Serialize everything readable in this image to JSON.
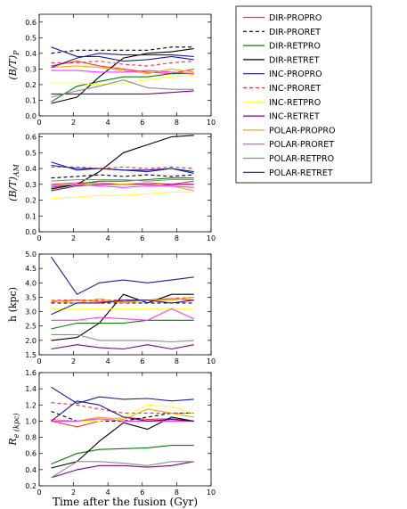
{
  "chart_data": [
    {
      "type": "line",
      "ylabel": "(B/T)_P",
      "xlim": [
        0,
        10
      ],
      "ylim": [
        0,
        0.65
      ],
      "xticks": [
        "0",
        "2",
        "4",
        "6",
        "8",
        "10"
      ],
      "yticks": [
        "0.0",
        "0.1",
        "0.2",
        "0.3",
        "0.4",
        "0.5",
        "0.6"
      ],
      "x": [
        0.7,
        2.2,
        3.5,
        4.9,
        6.3,
        7.7,
        9.0
      ],
      "series": [
        {
          "name": "DIR-PROPRO",
          "values": [
            0.32,
            0.35,
            0.32,
            0.3,
            0.28,
            0.27,
            0.3
          ]
        },
        {
          "name": "DIR-PRORET",
          "values": [
            0.4,
            0.42,
            0.42,
            0.42,
            0.42,
            0.44,
            0.44
          ]
        },
        {
          "name": "DIR-RETPRO",
          "values": [
            0.09,
            0.19,
            0.22,
            0.25,
            0.25,
            0.27,
            0.27
          ]
        },
        {
          "name": "DIR-RETRET",
          "values": [
            0.08,
            0.12,
            0.25,
            0.37,
            0.4,
            0.41,
            0.43
          ]
        },
        {
          "name": "INC-PROPRO",
          "values": [
            0.44,
            0.38,
            0.38,
            0.35,
            0.36,
            0.38,
            0.36
          ]
        },
        {
          "name": "INC-PRORET",
          "values": [
            0.34,
            0.34,
            0.35,
            0.33,
            0.32,
            0.34,
            0.35
          ]
        },
        {
          "name": "INC-RETPRO",
          "values": [
            0.21,
            0.21,
            0.2,
            0.21,
            0.23,
            0.25,
            0.26
          ]
        },
        {
          "name": "INC-RETRET",
          "values": [
            0.14,
            0.14,
            0.14,
            0.14,
            0.14,
            0.15,
            0.16
          ]
        },
        {
          "name": "POLAR-PROPRO",
          "values": [
            0.31,
            0.32,
            0.31,
            0.29,
            0.27,
            0.3,
            0.28
          ]
        },
        {
          "name": "POLAR-PRORET",
          "values": [
            0.29,
            0.29,
            0.28,
            0.28,
            0.29,
            0.28,
            0.27
          ]
        },
        {
          "name": "POLAR-RETPRO",
          "values": [
            0.12,
            0.16,
            0.19,
            0.23,
            0.18,
            0.17,
            0.17
          ]
        },
        {
          "name": "POLAR-RETRET",
          "values": [
            0.31,
            0.37,
            0.4,
            0.39,
            0.39,
            0.39,
            0.38
          ]
        }
      ]
    },
    {
      "type": "line",
      "ylabel": "(B/T)_AM",
      "xlim": [
        0,
        10
      ],
      "ylim": [
        0,
        0.62
      ],
      "xticks": [
        "0",
        "2",
        "4",
        "6",
        "8",
        "10"
      ],
      "yticks": [
        "0.0",
        "0.1",
        "0.2",
        "0.3",
        "0.4",
        "0.5",
        "0.6"
      ],
      "x": [
        0.7,
        2.2,
        3.5,
        4.9,
        6.3,
        7.7,
        9.0
      ],
      "series": [
        {
          "name": "DIR-PROPRO",
          "values": [
            0.3,
            0.31,
            0.31,
            0.3,
            0.31,
            0.3,
            0.32
          ]
        },
        {
          "name": "DIR-PRORET",
          "values": [
            0.34,
            0.35,
            0.36,
            0.35,
            0.36,
            0.35,
            0.36
          ]
        },
        {
          "name": "DIR-RETPRO",
          "values": [
            0.28,
            0.3,
            0.32,
            0.32,
            0.33,
            0.34,
            0.34
          ]
        },
        {
          "name": "DIR-RETRET",
          "values": [
            0.27,
            0.3,
            0.38,
            0.5,
            0.55,
            0.6,
            0.61
          ]
        },
        {
          "name": "INC-PROPRO",
          "values": [
            0.44,
            0.39,
            0.4,
            0.39,
            0.38,
            0.4,
            0.38
          ]
        },
        {
          "name": "INC-PRORET",
          "values": [
            0.41,
            0.41,
            0.4,
            0.41,
            0.4,
            0.41,
            0.4
          ]
        },
        {
          "name": "INC-RETPRO",
          "values": [
            0.21,
            0.22,
            0.23,
            0.23,
            0.24,
            0.25,
            0.25
          ]
        },
        {
          "name": "INC-RETRET",
          "values": [
            0.26,
            0.29,
            0.3,
            0.3,
            0.3,
            0.3,
            0.3
          ]
        },
        {
          "name": "POLAR-PROPRO",
          "values": [
            0.29,
            0.3,
            0.31,
            0.3,
            0.31,
            0.29,
            0.26
          ]
        },
        {
          "name": "POLAR-PRORET",
          "values": [
            0.29,
            0.3,
            0.29,
            0.28,
            0.29,
            0.29,
            0.28
          ]
        },
        {
          "name": "POLAR-RETPRO",
          "values": [
            0.32,
            0.33,
            0.33,
            0.33,
            0.32,
            0.33,
            0.33
          ]
        },
        {
          "name": "POLAR-RETRET",
          "values": [
            0.42,
            0.4,
            0.4,
            0.39,
            0.39,
            0.4,
            0.37
          ]
        }
      ]
    },
    {
      "type": "line",
      "ylabel": "h (kpc)",
      "xlim": [
        0,
        10
      ],
      "ylim": [
        1.5,
        5.0
      ],
      "xticks": [
        "0",
        "2",
        "4",
        "6",
        "8",
        "10"
      ],
      "yticks": [
        "1.5",
        "2.0",
        "2.5",
        "3.0",
        "3.5",
        "4.0",
        "4.5",
        "5.0"
      ],
      "x": [
        0.7,
        2.2,
        3.5,
        4.9,
        6.3,
        7.7,
        9.0
      ],
      "series": [
        {
          "name": "DIR-PROPRO",
          "values": [
            3.35,
            3.4,
            3.35,
            3.35,
            3.4,
            3.45,
            3.4
          ]
        },
        {
          "name": "DIR-PRORET",
          "values": [
            3.3,
            3.3,
            3.3,
            3.3,
            3.3,
            3.3,
            3.3
          ]
        },
        {
          "name": "DIR-RETPRO",
          "values": [
            2.4,
            2.6,
            2.6,
            2.6,
            2.7,
            2.7,
            2.7
          ]
        },
        {
          "name": "DIR-RETRET",
          "values": [
            2.0,
            2.1,
            2.6,
            3.6,
            3.3,
            3.6,
            3.6
          ]
        },
        {
          "name": "INC-PROPRO",
          "values": [
            4.9,
            3.6,
            4.0,
            4.1,
            4.0,
            4.1,
            4.2
          ]
        },
        {
          "name": "INC-PRORET",
          "values": [
            3.4,
            3.4,
            3.4,
            3.4,
            3.4,
            3.45,
            3.5
          ]
        },
        {
          "name": "INC-RETPRO",
          "values": [
            3.1,
            3.1,
            3.1,
            3.1,
            3.1,
            3.1,
            3.1
          ]
        },
        {
          "name": "INC-RETRET",
          "values": [
            1.7,
            1.85,
            1.75,
            1.7,
            1.85,
            1.7,
            1.85
          ]
        },
        {
          "name": "POLAR-PROPRO",
          "values": [
            3.4,
            3.3,
            3.45,
            3.3,
            3.4,
            3.4,
            3.5
          ]
        },
        {
          "name": "POLAR-PRORET",
          "values": [
            2.7,
            2.7,
            2.8,
            2.75,
            2.7,
            3.1,
            2.75
          ]
        },
        {
          "name": "POLAR-RETPRO",
          "values": [
            2.2,
            2.2,
            2.0,
            2.0,
            2.0,
            1.95,
            2.0
          ]
        },
        {
          "name": "POLAR-RETRET",
          "values": [
            2.9,
            3.3,
            3.3,
            3.4,
            3.4,
            3.3,
            3.4
          ]
        }
      ]
    },
    {
      "type": "line",
      "ylabel": "R_e (kpc)",
      "xlabel": "Time after the fusion (Gyr)",
      "xlim": [
        0,
        10
      ],
      "ylim": [
        0.2,
        1.6
      ],
      "xticks": [
        "0",
        "2",
        "4",
        "6",
        "8",
        "10"
      ],
      "yticks": [
        "0.2",
        "0.4",
        "0.6",
        "0.8",
        "1.0",
        "1.2",
        "1.4",
        "1.6"
      ],
      "x": [
        0.7,
        2.2,
        3.5,
        4.9,
        6.3,
        7.7,
        9.0
      ],
      "series": [
        {
          "name": "DIR-PROPRO",
          "values": [
            1.0,
            0.93,
            1.0,
            1.05,
            1.02,
            1.03,
            1.0
          ]
        },
        {
          "name": "DIR-PRORET",
          "values": [
            1.12,
            1.0,
            1.0,
            1.0,
            1.05,
            1.1,
            1.1
          ]
        },
        {
          "name": "DIR-RETPRO",
          "values": [
            0.47,
            0.6,
            0.65,
            0.66,
            0.67,
            0.7,
            0.7
          ]
        },
        {
          "name": "DIR-RETRET",
          "values": [
            0.42,
            0.5,
            0.75,
            0.98,
            0.9,
            1.05,
            1.0
          ]
        },
        {
          "name": "INC-PROPRO",
          "values": [
            1.42,
            1.22,
            1.3,
            1.27,
            1.28,
            1.25,
            1.27
          ]
        },
        {
          "name": "INC-PRORET",
          "values": [
            1.23,
            1.2,
            1.15,
            1.1,
            1.1,
            1.1,
            1.1
          ]
        },
        {
          "name": "INC-RETPRO",
          "values": [
            1.0,
            1.0,
            1.0,
            1.05,
            1.2,
            1.18,
            1.1
          ]
        },
        {
          "name": "INC-RETRET",
          "values": [
            0.3,
            0.4,
            0.45,
            0.45,
            0.43,
            0.45,
            0.5
          ]
        },
        {
          "name": "POLAR-PROPRO",
          "values": [
            1.02,
            1.0,
            1.05,
            1.02,
            1.15,
            1.1,
            1.05
          ]
        },
        {
          "name": "POLAR-PRORET",
          "values": [
            1.0,
            1.0,
            1.03,
            1.0,
            1.0,
            1.0,
            1.0
          ]
        },
        {
          "name": "POLAR-RETPRO",
          "values": [
            0.3,
            0.5,
            0.5,
            0.48,
            0.45,
            0.5,
            0.5
          ]
        },
        {
          "name": "POLAR-RETRET",
          "values": [
            1.0,
            1.25,
            1.2,
            1.05,
            1.0,
            1.02,
            1.0
          ]
        }
      ]
    }
  ],
  "legend": {
    "placement": "right",
    "items": [
      {
        "label": "DIR-PROPRO",
        "color": "#ff3333",
        "dash": "solid"
      },
      {
        "label": "DIR-PRORET",
        "color": "#000000",
        "dash": "dashed"
      },
      {
        "label": "DIR-RETPRO",
        "color": "#008000",
        "dash": "solid"
      },
      {
        "label": "DIR-RETRET",
        "color": "#000000",
        "dash": "solid"
      },
      {
        "label": "INC-PROPRO",
        "color": "#1a1aa6",
        "dash": "solid"
      },
      {
        "label": "INC-PRORET",
        "color": "#ff3333",
        "dash": "dashed"
      },
      {
        "label": "INC-RETPRO",
        "color": "#ffff33",
        "dash": "solid"
      },
      {
        "label": "INC-RETRET",
        "color": "#800080",
        "dash": "solid"
      },
      {
        "label": "POLAR-PROPRO",
        "color": "#ffa500",
        "dash": "solid"
      },
      {
        "label": "POLAR-PRORET",
        "color": "#ff33ff",
        "dash": "solid"
      },
      {
        "label": "POLAR-RETPRO",
        "color": "#8c8c8c",
        "dash": "solid"
      },
      {
        "label": "POLAR-RETRET",
        "color": "#1a1a99",
        "dash": "solid"
      }
    ]
  }
}
